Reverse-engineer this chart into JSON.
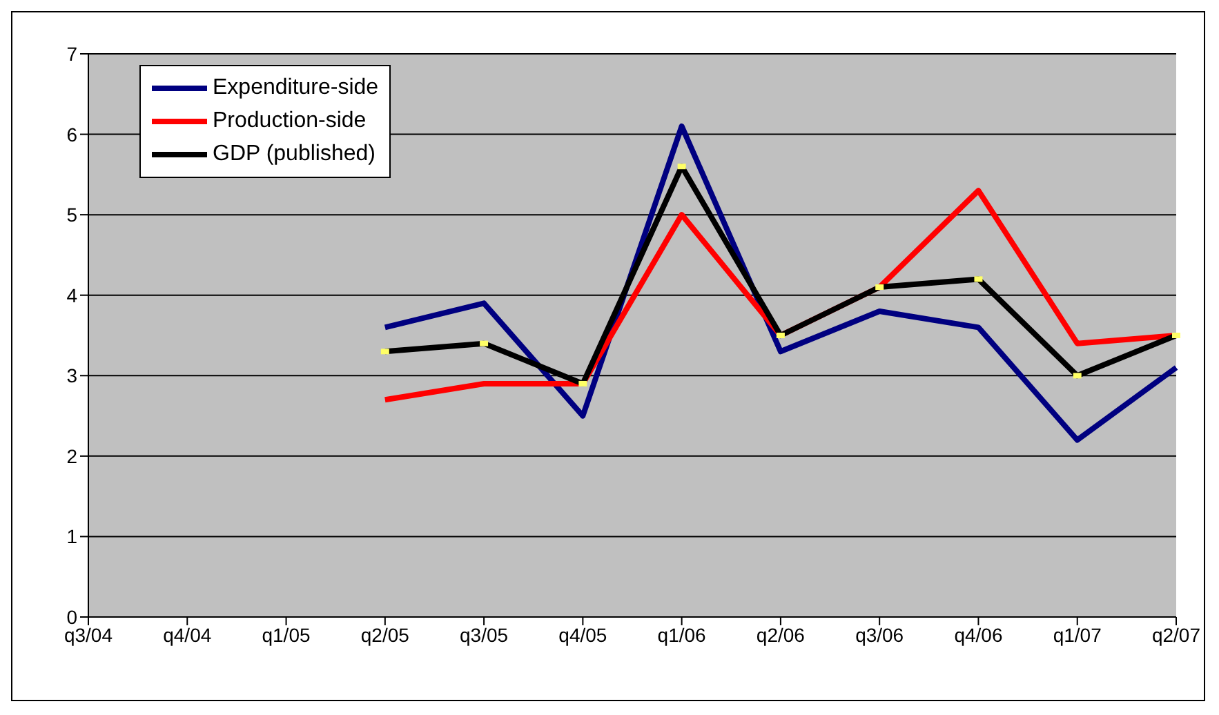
{
  "chart_data": {
    "type": "line",
    "categories": [
      "q3/04",
      "q4/04",
      "q1/05",
      "q2/05",
      "q3/05",
      "q4/05",
      "q1/06",
      "q2/06",
      "q3/06",
      "q4/06",
      "q1/07",
      "q2/07"
    ],
    "series": [
      {
        "name": "Expenditure-side",
        "color": "#000080",
        "values": [
          null,
          null,
          null,
          3.6,
          3.9,
          2.5,
          6.1,
          3.3,
          3.8,
          3.6,
          2.2,
          3.1
        ]
      },
      {
        "name": "Production-side",
        "color": "#ff0000",
        "values": [
          null,
          null,
          null,
          2.7,
          2.9,
          2.9,
          5.0,
          3.5,
          4.1,
          5.3,
          3.4,
          3.5
        ]
      },
      {
        "name": "GDP (published)",
        "color": "#000000",
        "marker": "square",
        "values": [
          null,
          null,
          null,
          3.3,
          3.4,
          2.9,
          5.6,
          3.5,
          4.1,
          4.2,
          3.0,
          3.5
        ]
      }
    ],
    "ylim": [
      0,
      7
    ],
    "yticks": [
      0,
      1,
      2,
      3,
      4,
      5,
      6,
      7
    ],
    "grid": "y",
    "legend": "top left",
    "marker": "none",
    "line_style": "solid"
  }
}
